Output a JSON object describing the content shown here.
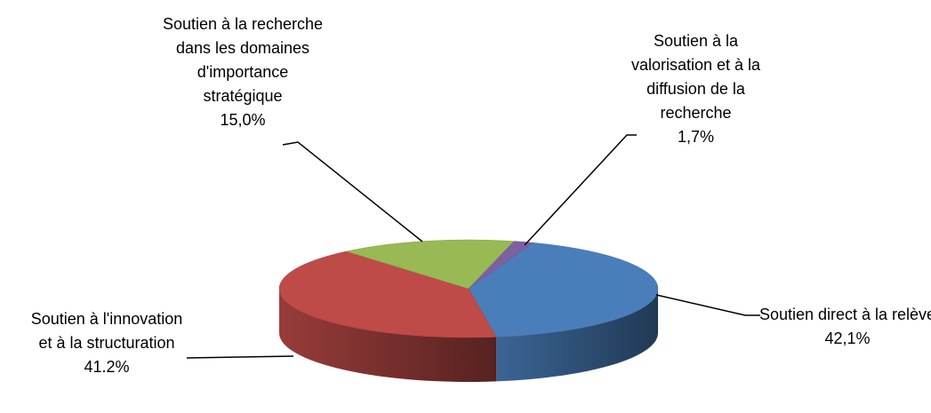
{
  "chart_data": {
    "type": "pie",
    "categories": [
      "Soutien direct à la relève",
      "Soutien à l'innovation et à la structuration",
      "Soutien à la recherche dans les domaines d'importance stratégique",
      "Soutien à la valorisation et à la diffusion de la recherche"
    ],
    "values": [
      42.1,
      41.2,
      15.0,
      1.7
    ],
    "value_labels": [
      "42,1%",
      "41.2%",
      "15,0%",
      "1,7%"
    ],
    "colors": [
      "#4a7ebb",
      "#be4b48",
      "#98b954",
      "#7d60a0"
    ]
  }
}
